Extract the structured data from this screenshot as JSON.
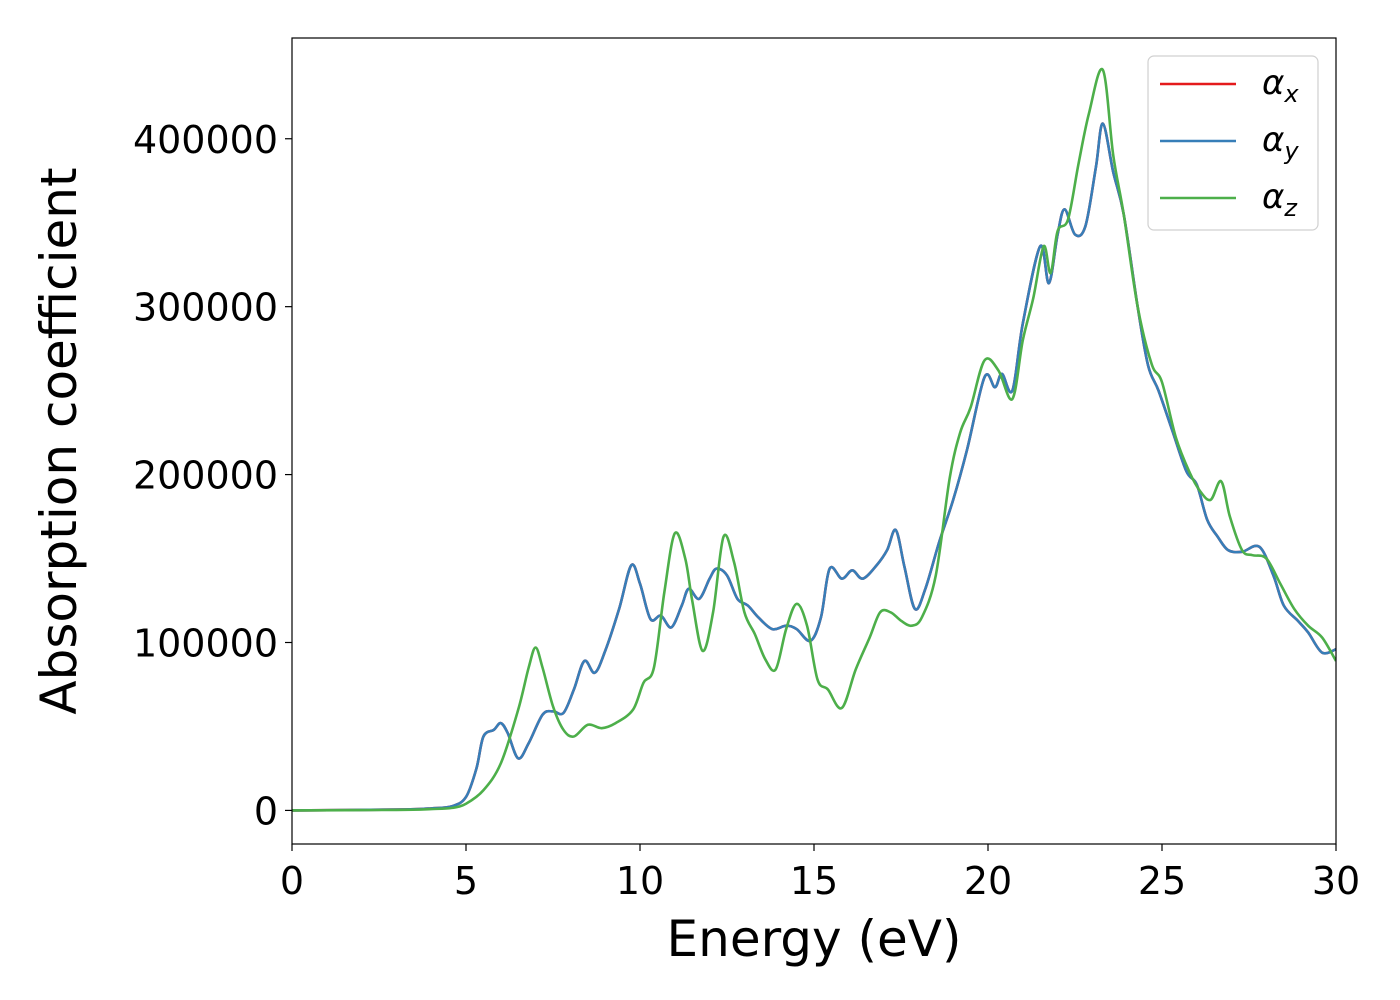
{
  "chart_data": {
    "type": "line",
    "xlabel": "Energy (eV)",
    "ylabel": "Absorption coefficient",
    "xlim": [
      0,
      30
    ],
    "ylim": [
      -20000,
      460000
    ],
    "xticks": [
      0,
      5,
      10,
      15,
      20,
      25,
      30
    ],
    "yticks": [
      0,
      100000,
      200000,
      300000,
      400000
    ],
    "grid": false,
    "legend_position": "top-right",
    "series": [
      {
        "name": "α",
        "sub": "x",
        "color": "#e41a1c",
        "points": [
          [
            0,
            0
          ],
          [
            3,
            500
          ],
          [
            4,
            1200
          ],
          [
            4.6,
            2500
          ],
          [
            5.0,
            8000
          ],
          [
            5.3,
            25000
          ],
          [
            5.5,
            44000
          ],
          [
            5.8,
            48000
          ],
          [
            6.0,
            52000
          ],
          [
            6.2,
            46000
          ],
          [
            6.5,
            31000
          ],
          [
            6.8,
            40000
          ],
          [
            7.2,
            57000
          ],
          [
            7.5,
            59000
          ],
          [
            7.8,
            58000
          ],
          [
            8.1,
            72000
          ],
          [
            8.4,
            89000
          ],
          [
            8.7,
            82000
          ],
          [
            9.0,
            95000
          ],
          [
            9.4,
            120000
          ],
          [
            9.75,
            146000
          ],
          [
            10.0,
            135000
          ],
          [
            10.3,
            114000
          ],
          [
            10.6,
            116000
          ],
          [
            10.9,
            109000
          ],
          [
            11.2,
            122000
          ],
          [
            11.4,
            132000
          ],
          [
            11.7,
            126000
          ],
          [
            12.0,
            138000
          ],
          [
            12.2,
            144000
          ],
          [
            12.5,
            140000
          ],
          [
            12.8,
            126000
          ],
          [
            13.1,
            122000
          ],
          [
            13.4,
            115000
          ],
          [
            13.8,
            108000
          ],
          [
            14.2,
            110000
          ],
          [
            14.5,
            108000
          ],
          [
            14.9,
            101000
          ],
          [
            15.2,
            115000
          ],
          [
            15.45,
            144000
          ],
          [
            15.8,
            138000
          ],
          [
            16.1,
            143000
          ],
          [
            16.4,
            138000
          ],
          [
            16.8,
            146000
          ],
          [
            17.1,
            155000
          ],
          [
            17.35,
            167000
          ],
          [
            17.6,
            145000
          ],
          [
            17.9,
            120000
          ],
          [
            18.2,
            132000
          ],
          [
            18.6,
            160000
          ],
          [
            19.0,
            185000
          ],
          [
            19.4,
            215000
          ],
          [
            19.9,
            258000
          ],
          [
            20.2,
            252000
          ],
          [
            20.4,
            260000
          ],
          [
            20.7,
            250000
          ],
          [
            21.0,
            290000
          ],
          [
            21.5,
            336000
          ],
          [
            21.75,
            314000
          ],
          [
            22.0,
            343000
          ],
          [
            22.2,
            358000
          ],
          [
            22.5,
            343000
          ],
          [
            22.8,
            348000
          ],
          [
            23.1,
            383000
          ],
          [
            23.3,
            409000
          ],
          [
            23.6,
            380000
          ],
          [
            23.9,
            355000
          ],
          [
            24.3,
            300000
          ],
          [
            24.6,
            265000
          ],
          [
            24.9,
            250000
          ],
          [
            25.3,
            226000
          ],
          [
            25.7,
            202000
          ],
          [
            26.0,
            194000
          ],
          [
            26.3,
            173000
          ],
          [
            26.6,
            163000
          ],
          [
            26.9,
            155000
          ],
          [
            27.3,
            154000
          ],
          [
            27.8,
            157000
          ],
          [
            28.2,
            140000
          ],
          [
            28.5,
            122000
          ],
          [
            28.9,
            113000
          ],
          [
            29.2,
            106000
          ],
          [
            29.6,
            94000
          ],
          [
            30.0,
            96000
          ]
        ]
      },
      {
        "name": "α",
        "sub": "y",
        "color": "#377eb8",
        "points": [
          [
            0,
            0
          ],
          [
            3,
            500
          ],
          [
            4,
            1200
          ],
          [
            4.6,
            2500
          ],
          [
            5.0,
            8000
          ],
          [
            5.3,
            25000
          ],
          [
            5.5,
            44000
          ],
          [
            5.8,
            48000
          ],
          [
            6.0,
            52000
          ],
          [
            6.2,
            46000
          ],
          [
            6.5,
            31000
          ],
          [
            6.8,
            40000
          ],
          [
            7.2,
            57000
          ],
          [
            7.5,
            59000
          ],
          [
            7.8,
            58000
          ],
          [
            8.1,
            72000
          ],
          [
            8.4,
            89000
          ],
          [
            8.7,
            82000
          ],
          [
            9.0,
            95000
          ],
          [
            9.4,
            120000
          ],
          [
            9.75,
            146000
          ],
          [
            10.0,
            135000
          ],
          [
            10.3,
            114000
          ],
          [
            10.6,
            116000
          ],
          [
            10.9,
            109000
          ],
          [
            11.2,
            122000
          ],
          [
            11.4,
            132000
          ],
          [
            11.7,
            126000
          ],
          [
            12.0,
            138000
          ],
          [
            12.2,
            144000
          ],
          [
            12.5,
            140000
          ],
          [
            12.8,
            126000
          ],
          [
            13.1,
            122000
          ],
          [
            13.4,
            115000
          ],
          [
            13.8,
            108000
          ],
          [
            14.2,
            110000
          ],
          [
            14.5,
            108000
          ],
          [
            14.9,
            101000
          ],
          [
            15.2,
            115000
          ],
          [
            15.45,
            144000
          ],
          [
            15.8,
            138000
          ],
          [
            16.1,
            143000
          ],
          [
            16.4,
            138000
          ],
          [
            16.8,
            146000
          ],
          [
            17.1,
            155000
          ],
          [
            17.35,
            167000
          ],
          [
            17.6,
            145000
          ],
          [
            17.9,
            120000
          ],
          [
            18.2,
            132000
          ],
          [
            18.6,
            160000
          ],
          [
            19.0,
            185000
          ],
          [
            19.4,
            215000
          ],
          [
            19.9,
            258000
          ],
          [
            20.2,
            252000
          ],
          [
            20.4,
            260000
          ],
          [
            20.7,
            250000
          ],
          [
            21.0,
            290000
          ],
          [
            21.5,
            336000
          ],
          [
            21.75,
            314000
          ],
          [
            22.0,
            343000
          ],
          [
            22.2,
            358000
          ],
          [
            22.5,
            343000
          ],
          [
            22.8,
            348000
          ],
          [
            23.1,
            383000
          ],
          [
            23.3,
            409000
          ],
          [
            23.6,
            380000
          ],
          [
            23.9,
            355000
          ],
          [
            24.3,
            300000
          ],
          [
            24.6,
            265000
          ],
          [
            24.9,
            250000
          ],
          [
            25.3,
            226000
          ],
          [
            25.7,
            202000
          ],
          [
            26.0,
            194000
          ],
          [
            26.3,
            173000
          ],
          [
            26.6,
            163000
          ],
          [
            26.9,
            155000
          ],
          [
            27.3,
            154000
          ],
          [
            27.8,
            157000
          ],
          [
            28.2,
            140000
          ],
          [
            28.5,
            122000
          ],
          [
            28.9,
            113000
          ],
          [
            29.2,
            106000
          ],
          [
            29.6,
            94000
          ],
          [
            30.0,
            96000
          ]
        ]
      },
      {
        "name": "α",
        "sub": "z",
        "color": "#4daf4a",
        "points": [
          [
            0,
            0
          ],
          [
            3,
            300
          ],
          [
            4,
            800
          ],
          [
            4.6,
            1500
          ],
          [
            5.0,
            4000
          ],
          [
            5.5,
            12000
          ],
          [
            6.0,
            28000
          ],
          [
            6.5,
            60000
          ],
          [
            6.8,
            85000
          ],
          [
            7.0,
            97000
          ],
          [
            7.2,
            85000
          ],
          [
            7.5,
            62000
          ],
          [
            7.8,
            48000
          ],
          [
            8.1,
            44000
          ],
          [
            8.5,
            51000
          ],
          [
            8.9,
            49000
          ],
          [
            9.3,
            52000
          ],
          [
            9.8,
            60000
          ],
          [
            10.1,
            76000
          ],
          [
            10.4,
            85000
          ],
          [
            10.7,
            130000
          ],
          [
            11.0,
            165000
          ],
          [
            11.3,
            150000
          ],
          [
            11.5,
            125000
          ],
          [
            11.8,
            95000
          ],
          [
            12.1,
            118000
          ],
          [
            12.4,
            163000
          ],
          [
            12.7,
            148000
          ],
          [
            13.0,
            118000
          ],
          [
            13.3,
            105000
          ],
          [
            13.6,
            90000
          ],
          [
            13.9,
            84000
          ],
          [
            14.2,
            108000
          ],
          [
            14.5,
            123000
          ],
          [
            14.8,
            110000
          ],
          [
            15.1,
            78000
          ],
          [
            15.4,
            72000
          ],
          [
            15.8,
            61000
          ],
          [
            16.2,
            84000
          ],
          [
            16.6,
            103000
          ],
          [
            16.9,
            118000
          ],
          [
            17.2,
            118000
          ],
          [
            17.5,
            113000
          ],
          [
            17.8,
            110000
          ],
          [
            18.1,
            115000
          ],
          [
            18.5,
            140000
          ],
          [
            18.9,
            198000
          ],
          [
            19.2,
            225000
          ],
          [
            19.5,
            240000
          ],
          [
            19.9,
            268000
          ],
          [
            20.3,
            262000
          ],
          [
            20.7,
            245000
          ],
          [
            21.0,
            280000
          ],
          [
            21.3,
            305000
          ],
          [
            21.6,
            336000
          ],
          [
            21.8,
            320000
          ],
          [
            22.0,
            345000
          ],
          [
            22.3,
            352000
          ],
          [
            22.6,
            385000
          ],
          [
            22.9,
            415000
          ],
          [
            23.3,
            441000
          ],
          [
            23.6,
            390000
          ],
          [
            23.9,
            355000
          ],
          [
            24.3,
            300000
          ],
          [
            24.7,
            266000
          ],
          [
            25.0,
            255000
          ],
          [
            25.4,
            222000
          ],
          [
            25.8,
            201000
          ],
          [
            26.1,
            190000
          ],
          [
            26.4,
            185000
          ],
          [
            26.7,
            196000
          ],
          [
            26.95,
            175000
          ],
          [
            27.3,
            155000
          ],
          [
            27.6,
            152000
          ],
          [
            28.0,
            150000
          ],
          [
            28.4,
            135000
          ],
          [
            28.8,
            120000
          ],
          [
            29.2,
            110000
          ],
          [
            29.6,
            103000
          ],
          [
            30.0,
            89000
          ]
        ]
      }
    ]
  }
}
